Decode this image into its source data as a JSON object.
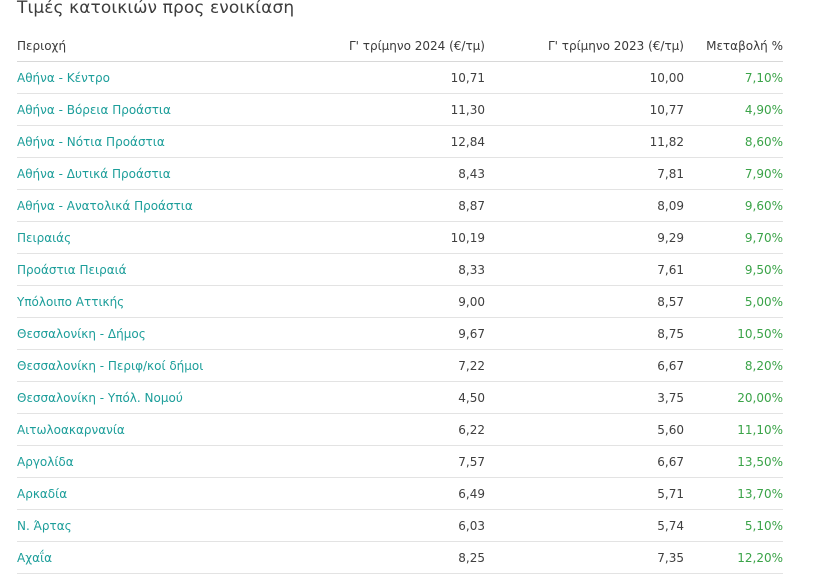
{
  "chart_data": {
    "type": "table",
    "title": "Τιμές κατοικιών προς ενοικίαση",
    "columns": [
      "Περιοχή",
      "Γ' τρίμηνο 2024 (€/τμ)",
      "Γ' τρίμηνο 2023 (€/τμ)",
      "Μεταβολή %"
    ],
    "rows": [
      [
        "Αθήνα - Κέντρο",
        "10,71",
        "10,00",
        "7,10%"
      ],
      [
        "Αθήνα - Βόρεια Προάστια",
        "11,30",
        "10,77",
        "4,90%"
      ],
      [
        "Αθήνα - Νότια Προάστια",
        "12,84",
        "11,82",
        "8,60%"
      ],
      [
        "Αθήνα - Δυτικά Προάστια",
        "8,43",
        "7,81",
        "7,90%"
      ],
      [
        "Αθήνα - Ανατολικά Προάστια",
        "8,87",
        "8,09",
        "9,60%"
      ],
      [
        "Πειραιάς",
        "10,19",
        "9,29",
        "9,70%"
      ],
      [
        "Προάστια Πειραιά",
        "8,33",
        "7,61",
        "9,50%"
      ],
      [
        "Υπόλοιπο Αττικής",
        "9,00",
        "8,57",
        "5,00%"
      ],
      [
        "Θεσσαλονίκη - Δήμος",
        "9,67",
        "8,75",
        "10,50%"
      ],
      [
        "Θεσσαλονίκη - Περιφ/κοί δήμοι",
        "7,22",
        "6,67",
        "8,20%"
      ],
      [
        "Θεσσαλονίκη - Υπόλ. Νομού",
        "4,50",
        "3,75",
        "20,00%"
      ],
      [
        "Αιτωλοακαρνανία",
        "6,22",
        "5,60",
        "11,10%"
      ],
      [
        "Αργολίδα",
        "7,57",
        "6,67",
        "13,50%"
      ],
      [
        "Αρκαδία",
        "6,49",
        "5,71",
        "13,70%"
      ],
      [
        "Ν. Άρτας",
        "6,03",
        "5,74",
        "5,10%"
      ],
      [
        "Αχαΐα",
        "8,25",
        "7,35",
        "12,20%"
      ]
    ]
  },
  "colors": {
    "region_text": "#1c9e9a",
    "change_text": "#3aa348",
    "value_text": "#3f3f3f",
    "row_divider": "#e3e3e3"
  }
}
